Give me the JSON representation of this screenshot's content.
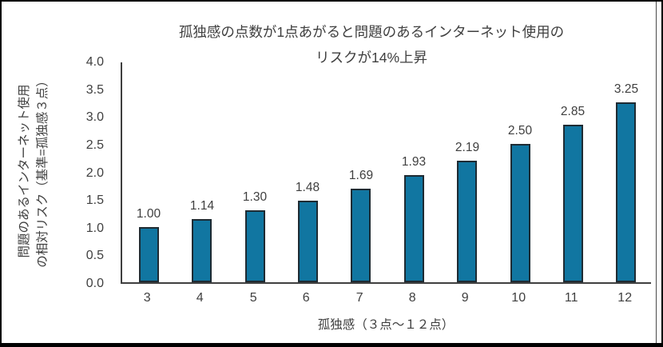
{
  "chart_data": {
    "type": "bar",
    "title_lines": [
      "孤独感の点数が1点あがると問題のあるインターネット使用の",
      "リスクが14%上昇"
    ],
    "categories": [
      "3",
      "4",
      "5",
      "6",
      "7",
      "8",
      "9",
      "10",
      "11",
      "12"
    ],
    "values": [
      1.0,
      1.14,
      1.3,
      1.48,
      1.69,
      1.93,
      2.19,
      2.5,
      2.85,
      3.25
    ],
    "data_labels": [
      "1.00",
      "1.14",
      "1.30",
      "1.48",
      "1.69",
      "1.93",
      "2.19",
      "2.50",
      "2.85",
      "3.25"
    ],
    "xlabel": "孤独感（３点～１２点）",
    "ylabel_lines": [
      "問題のあるインターネット使用",
      "の相対リスク（基準=孤独感３点）"
    ],
    "ylim": [
      0.0,
      4.0
    ],
    "ytick_step": 0.5,
    "yticks": [
      "0.0",
      "0.5",
      "1.0",
      "1.5",
      "2.0",
      "2.5",
      "3.0",
      "3.5",
      "4.0"
    ],
    "grid": false,
    "legend": "none",
    "colors": {
      "bar_fill": "#1176a1",
      "bar_border": "#1e2b33",
      "axis_line": "#3f3f3f",
      "text": "#3f3f3f",
      "outer_border": "#000000"
    }
  }
}
